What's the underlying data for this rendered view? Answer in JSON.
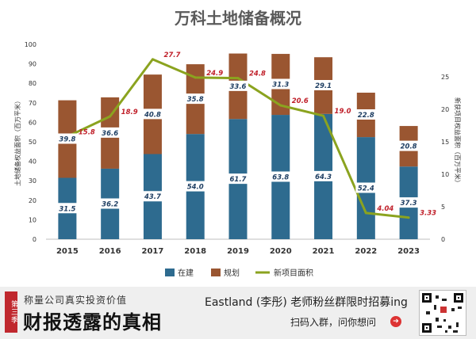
{
  "chart_data": {
    "type": "bar",
    "stacked": true,
    "title": "万科土地储备概况",
    "categories": [
      "2015",
      "2016",
      "2017",
      "2018",
      "2019",
      "2020",
      "2021",
      "2022",
      "2023"
    ],
    "ylabel_left": "土地储备权益面积（百万平米）",
    "ylabel_right": "新获项目权益面积（百万平米）",
    "ylim_left": [
      0,
      100
    ],
    "yticks_left": [
      "0",
      "10",
      "20",
      "30",
      "40",
      "50",
      "60",
      "70",
      "80",
      "90",
      "100"
    ],
    "ylim_right": [
      0,
      30
    ],
    "yticks_right": [
      "0",
      "5",
      "10",
      "15",
      "20",
      "25"
    ],
    "series": [
      {
        "name": "在建",
        "axis": "left",
        "color": "#2e6b8f",
        "values": [
          31.5,
          36.2,
          43.7,
          54.0,
          61.7,
          63.8,
          64.3,
          52.4,
          37.3
        ],
        "labels": [
          "31.5",
          "36.2",
          "43.7",
          "54.0",
          "61.7",
          "63.8",
          "64.3",
          "52.4",
          "37.3"
        ]
      },
      {
        "name": "规划",
        "axis": "left",
        "color": "#9a5631",
        "values": [
          39.8,
          36.6,
          40.8,
          35.8,
          33.6,
          31.3,
          29.1,
          22.8,
          20.8
        ],
        "labels": [
          "39.8",
          "36.6",
          "40.8",
          "35.8",
          "33.6",
          "31.3",
          "29.1",
          "22.8",
          "20.8"
        ]
      },
      {
        "name": "新项目面积",
        "axis": "right",
        "type": "line",
        "color": "#8ba31f",
        "values": [
          15.8,
          18.9,
          27.7,
          24.9,
          24.8,
          20.6,
          19.0,
          4.04,
          3.33
        ],
        "labels": [
          "15.8",
          "18.9",
          "27.7",
          "24.9",
          "24.8",
          "20.6",
          "19.0",
          "4.04",
          "3.33"
        ]
      }
    ],
    "legend_position": "bottom",
    "grid": false
  },
  "banner": {
    "badge": "第三季",
    "left_sub": "称量公司真实投资价值",
    "left_main": "财报透露的真相",
    "right_main": "Eastland (李彤) 老师粉丝群限时招募ing",
    "right_sub": "扫码入群，问你想问",
    "arrow": "➔",
    "qr_icon": "qr-code-icon"
  }
}
